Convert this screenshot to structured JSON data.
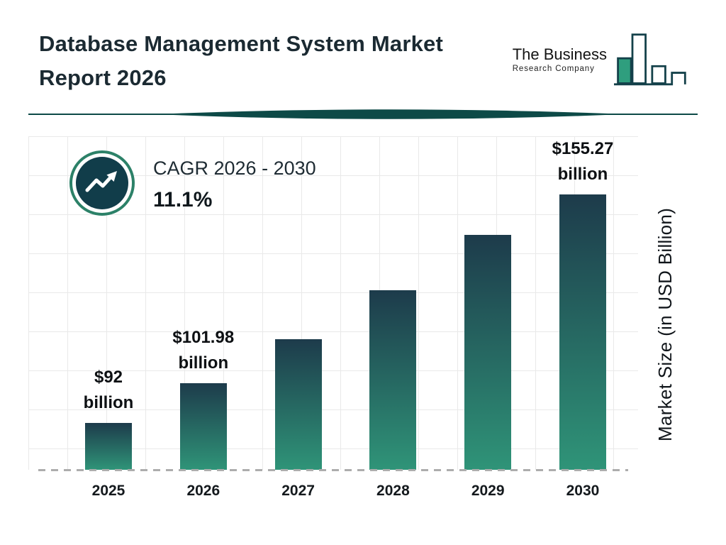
{
  "header": {
    "title_line1": "Database Management System Market",
    "title_line2": "Report 2026",
    "logo": {
      "name_line1": "The Business",
      "name_line2": "Research Company"
    }
  },
  "cagr_badge": {
    "label": "CAGR 2026 - 2030",
    "value": "11.1%",
    "icon": "trending-up-arrow-icon"
  },
  "chart_data": {
    "type": "bar",
    "title": "Database Management System Market Report 2026",
    "xlabel": "",
    "ylabel": "Market Size (in USD Billion)",
    "categories": [
      "2025",
      "2026",
      "2027",
      "2028",
      "2029",
      "2030"
    ],
    "values": [
      92,
      101.98,
      113.3,
      125.8,
      139.8,
      155.27
    ],
    "value_labels": [
      "$92 billion",
      "$101.98 billion",
      null,
      null,
      null,
      "$155.27 billion"
    ],
    "cagr_2026_2030": "11.1%",
    "ylim": [
      80,
      165
    ],
    "grid": true,
    "legend": false,
    "bar_gradient_top": "#1d3b4b",
    "bar_gradient_bottom": "#2f9478"
  },
  "colors": {
    "accent_ring_teal": "#2c8168",
    "dark_teal_circle": "#113d4a",
    "divider_teal": "#0d4a47",
    "grid_line": "#e9e9e9",
    "text_dark": "#1b2a32"
  }
}
